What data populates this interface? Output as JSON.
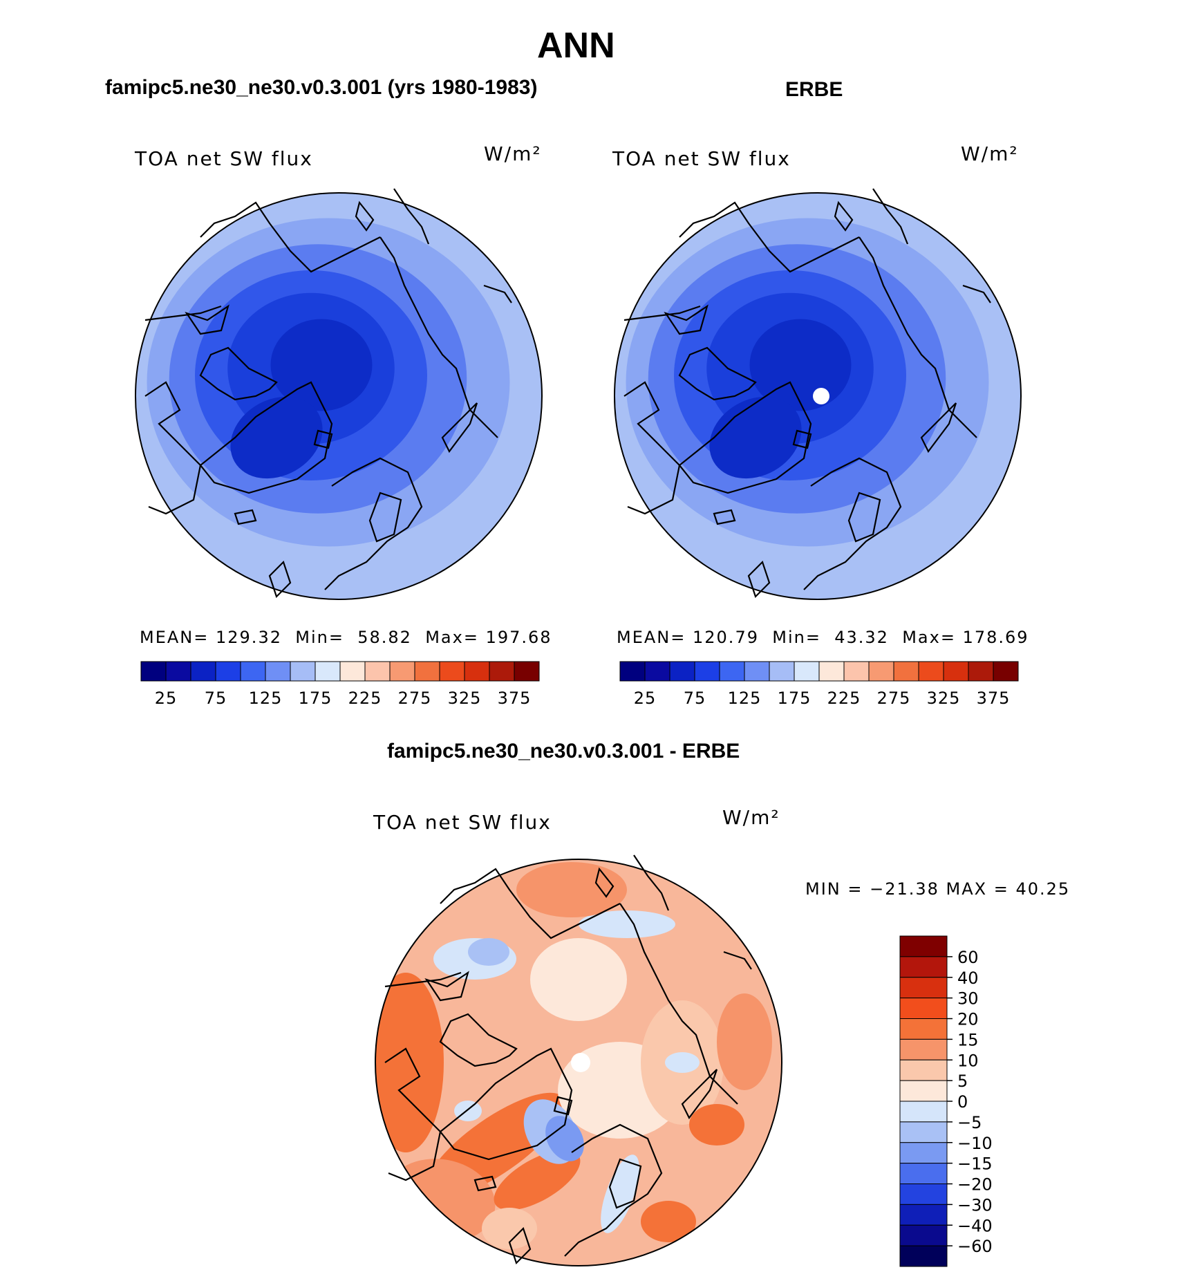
{
  "figure": {
    "title": "ANN",
    "panel_titles": {
      "model": "famipc5.ne30_ne30.v0.3.001 (yrs 1980-1983)",
      "obs": "ERBE",
      "diff": "famipc5.ne30_ne30.v0.3.001 - ERBE"
    },
    "variable": "TOA net SW flux",
    "units": "W/m²"
  },
  "model_panel": {
    "stats": {
      "mean_label": "MEAN=",
      "mean": "129.32",
      "min_label": "Min=",
      "min": "58.82",
      "max_label": "Max=",
      "max": "197.68"
    }
  },
  "obs_panel": {
    "stats": {
      "mean_label": "MEAN=",
      "mean": "120.79",
      "min_label": "Min=",
      "min": "43.32",
      "max_label": "Max=",
      "max": "178.69"
    }
  },
  "diff_panel": {
    "stats_line": "MIN = −21.38 MAX =  40.25"
  },
  "colorbar_abs": {
    "labels": [
      "25",
      "75",
      "125",
      "175",
      "225",
      "275",
      "325",
      "375"
    ],
    "colors": [
      "#00007f",
      "#0a0aa0",
      "#0b22c4",
      "#1c3fe6",
      "#3d66f2",
      "#6f8ff5",
      "#a6bdf6",
      "#d9e8fb",
      "#fde8da",
      "#fcc4ac",
      "#f79a72",
      "#f1713e",
      "#ec4b1c",
      "#d7300e",
      "#ac1a0a",
      "#780000"
    ]
  },
  "colorbar_diff": {
    "labels": [
      "60",
      "40",
      "30",
      "20",
      "15",
      "10",
      "5",
      "0",
      "−5",
      "−10",
      "−15",
      "−20",
      "−30",
      "−40",
      "−60"
    ],
    "colors": [
      "#7f0000",
      "#b3160c",
      "#d8300f",
      "#f24e1c",
      "#f47238",
      "#f6946a",
      "#fac8ac",
      "#fde8da",
      "#d5e5fa",
      "#a9c1f5",
      "#7a9af2",
      "#4a6eee",
      "#2343e0",
      "#0f1fb8",
      "#0a0a8e",
      "#00005a"
    ]
  },
  "maps": {
    "model": {
      "bands": [
        "#a9c0f5",
        "#8aa6f3",
        "#5b7cf0",
        "#3157ea",
        "#1a3fdb",
        "#0d2cc7"
      ]
    },
    "obs": {
      "bands": [
        "#a9c0f5",
        "#8aa6f3",
        "#5b7cf0",
        "#3157ea",
        "#1a3fdb",
        "#0d2cc7"
      ]
    },
    "diff": {
      "base": "#f8b79a",
      "blob_colors": [
        "#f47238",
        "#f6946a",
        "#fac8ac",
        "#fde8da",
        "#d5e5fa",
        "#a9c1f5",
        "#7a9af2"
      ]
    }
  }
}
